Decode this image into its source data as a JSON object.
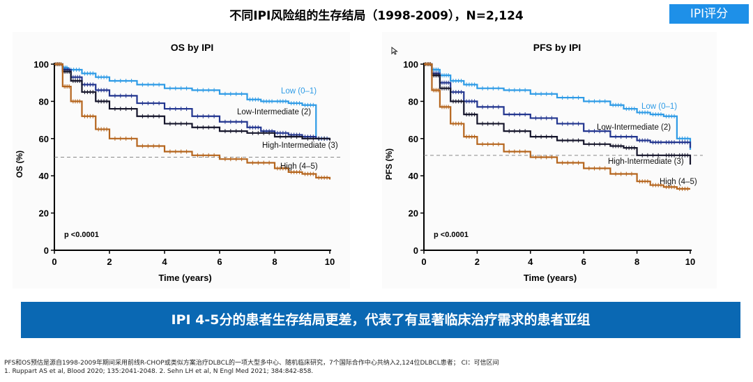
{
  "header": {
    "title": "不同IPI风险组的生存结局（1998-2009），N=2,124",
    "badge": "IPI评分"
  },
  "banner_text": "IPI 4-5分的患者生存结局更差，代表了有显著临床治疗需求的患者亚组",
  "footnotes": {
    "line1": "PFS和OS预估是源自1998-2009年期间采用前线R-CHOP或类似方案治疗DLBCL的一项大型多中心、随机临床研究，7个国际合作中心共纳入2,124位DLBCL患者； CI：可信区间",
    "line2": "1. Ruppart AS et al, Blood 2020; 135:2041-2048. 2. Sehn LH et al, N Engl Med 2021; 384:842-858."
  },
  "colors": {
    "low": "#2e9be6",
    "low_intermediate": "#22358f",
    "high_intermediate": "#15152b",
    "high": "#b5651d",
    "banner": "#0a68b3",
    "badge": "#1e90e8"
  },
  "chart_data": [
    {
      "type": "line",
      "title": "OS by IPI",
      "xlabel": "Time (years)",
      "ylabel": "OS (%)",
      "xlim": [
        0,
        10
      ],
      "ylim": [
        0,
        100
      ],
      "xticks": [
        "0",
        "2",
        "4",
        "6",
        "8",
        "10"
      ],
      "yticks": [
        "0",
        "20",
        "40",
        "60",
        "80",
        "100"
      ],
      "reference_line_y": 50,
      "annotation": "p <0.0001",
      "series": [
        {
          "name": "Low (0–1)",
          "color_key": "low",
          "points": [
            [
              0,
              100
            ],
            [
              0.3,
              98
            ],
            [
              0.5,
              97
            ],
            [
              1,
              95
            ],
            [
              1.5,
              93
            ],
            [
              2,
              91
            ],
            [
              3,
              89
            ],
            [
              4,
              87
            ],
            [
              5,
              86
            ],
            [
              6,
              84
            ],
            [
              7,
              81
            ],
            [
              7.5,
              80
            ],
            [
              8,
              80
            ],
            [
              8.5,
              79
            ],
            [
              9,
              78
            ],
            [
              9.5,
              60
            ],
            [
              10,
              60
            ]
          ]
        },
        {
          "name": "Low-Intermediate (2)",
          "color_key": "low_intermediate",
          "points": [
            [
              0,
              100
            ],
            [
              0.3,
              97
            ],
            [
              0.6,
              93
            ],
            [
              1,
              89
            ],
            [
              1.5,
              86
            ],
            [
              2,
              83
            ],
            [
              3,
              79
            ],
            [
              4,
              76
            ],
            [
              5,
              72
            ],
            [
              6,
              69
            ],
            [
              7,
              66
            ],
            [
              7.5,
              64
            ],
            [
              8,
              63
            ],
            [
              8.5,
              62
            ],
            [
              9,
              61
            ],
            [
              9.5,
              60
            ],
            [
              10,
              60
            ]
          ]
        },
        {
          "name": "High-Intermediate (3)",
          "color_key": "high_intermediate",
          "points": [
            [
              0,
              100
            ],
            [
              0.3,
              96
            ],
            [
              0.6,
              91
            ],
            [
              1,
              85
            ],
            [
              1.5,
              80
            ],
            [
              2,
              76
            ],
            [
              3,
              72
            ],
            [
              4,
              68
            ],
            [
              5,
              66
            ],
            [
              6,
              64
            ],
            [
              7,
              63
            ],
            [
              8,
              61
            ],
            [
              9,
              60
            ],
            [
              10,
              59
            ]
          ]
        },
        {
          "name": "High (4–5)",
          "color_key": "high",
          "points": [
            [
              0,
              100
            ],
            [
              0.3,
              88
            ],
            [
              0.6,
              80
            ],
            [
              1,
              72
            ],
            [
              1.5,
              65
            ],
            [
              2,
              60
            ],
            [
              3,
              56
            ],
            [
              4,
              53
            ],
            [
              5,
              51
            ],
            [
              6,
              49
            ],
            [
              7,
              47
            ],
            [
              8,
              44
            ],
            [
              8.5,
              42
            ],
            [
              9,
              41
            ],
            [
              9.5,
              39
            ],
            [
              10,
              38
            ]
          ]
        }
      ]
    },
    {
      "type": "line",
      "title": "PFS by IPI",
      "xlabel": "Time (years)",
      "ylabel": "PFS (%)",
      "xlim": [
        0,
        10
      ],
      "ylim": [
        0,
        100
      ],
      "xticks": [
        "0",
        "2",
        "4",
        "6",
        "8",
        "10"
      ],
      "yticks": [
        "0",
        "20",
        "40",
        "60",
        "80",
        "100"
      ],
      "reference_line_y": 51,
      "annotation": "p <0.0001",
      "series": [
        {
          "name": "Low (0–1)",
          "color_key": "low",
          "points": [
            [
              0,
              100
            ],
            [
              0.3,
              97
            ],
            [
              0.6,
              94
            ],
            [
              1,
              91
            ],
            [
              1.5,
              89
            ],
            [
              2,
              87
            ],
            [
              3,
              86
            ],
            [
              4,
              84
            ],
            [
              5,
              82
            ],
            [
              6,
              80
            ],
            [
              7,
              78
            ],
            [
              7.5,
              76
            ],
            [
              8,
              74
            ],
            [
              8.5,
              73
            ],
            [
              9,
              72
            ],
            [
              9.5,
              60
            ],
            [
              10,
              54
            ]
          ]
        },
        {
          "name": "Low-Intermediate (2)",
          "color_key": "low_intermediate",
          "points": [
            [
              0,
              100
            ],
            [
              0.3,
              95
            ],
            [
              0.6,
              90
            ],
            [
              1,
              85
            ],
            [
              1.5,
              80
            ],
            [
              2,
              77
            ],
            [
              3,
              73
            ],
            [
              4,
              71
            ],
            [
              5,
              68
            ],
            [
              6,
              64
            ],
            [
              7,
              61
            ],
            [
              8,
              59
            ],
            [
              8.5,
              58
            ],
            [
              9,
              58
            ],
            [
              9.5,
              58
            ],
            [
              10,
              55
            ]
          ]
        },
        {
          "name": "High-Intermediate (3)",
          "color_key": "high_intermediate",
          "points": [
            [
              0,
              100
            ],
            [
              0.3,
              94
            ],
            [
              0.6,
              87
            ],
            [
              1,
              80
            ],
            [
              1.5,
              73
            ],
            [
              2,
              68
            ],
            [
              3,
              64
            ],
            [
              4,
              61
            ],
            [
              5,
              59
            ],
            [
              6,
              57
            ],
            [
              7,
              56
            ],
            [
              7.5,
              55
            ],
            [
              8,
              51
            ],
            [
              9,
              51
            ],
            [
              9.5,
              51
            ],
            [
              10,
              46
            ]
          ]
        },
        {
          "name": "High (4–5)",
          "color_key": "high",
          "points": [
            [
              0,
              100
            ],
            [
              0.3,
              86
            ],
            [
              0.6,
              77
            ],
            [
              1,
              68
            ],
            [
              1.5,
              61
            ],
            [
              2,
              57
            ],
            [
              3,
              53
            ],
            [
              4,
              50
            ],
            [
              5,
              47
            ],
            [
              6,
              44
            ],
            [
              7,
              41
            ],
            [
              8,
              37
            ],
            [
              8.5,
              35
            ],
            [
              9,
              34
            ],
            [
              9.5,
              33
            ],
            [
              10,
              33
            ]
          ]
        }
      ]
    }
  ]
}
